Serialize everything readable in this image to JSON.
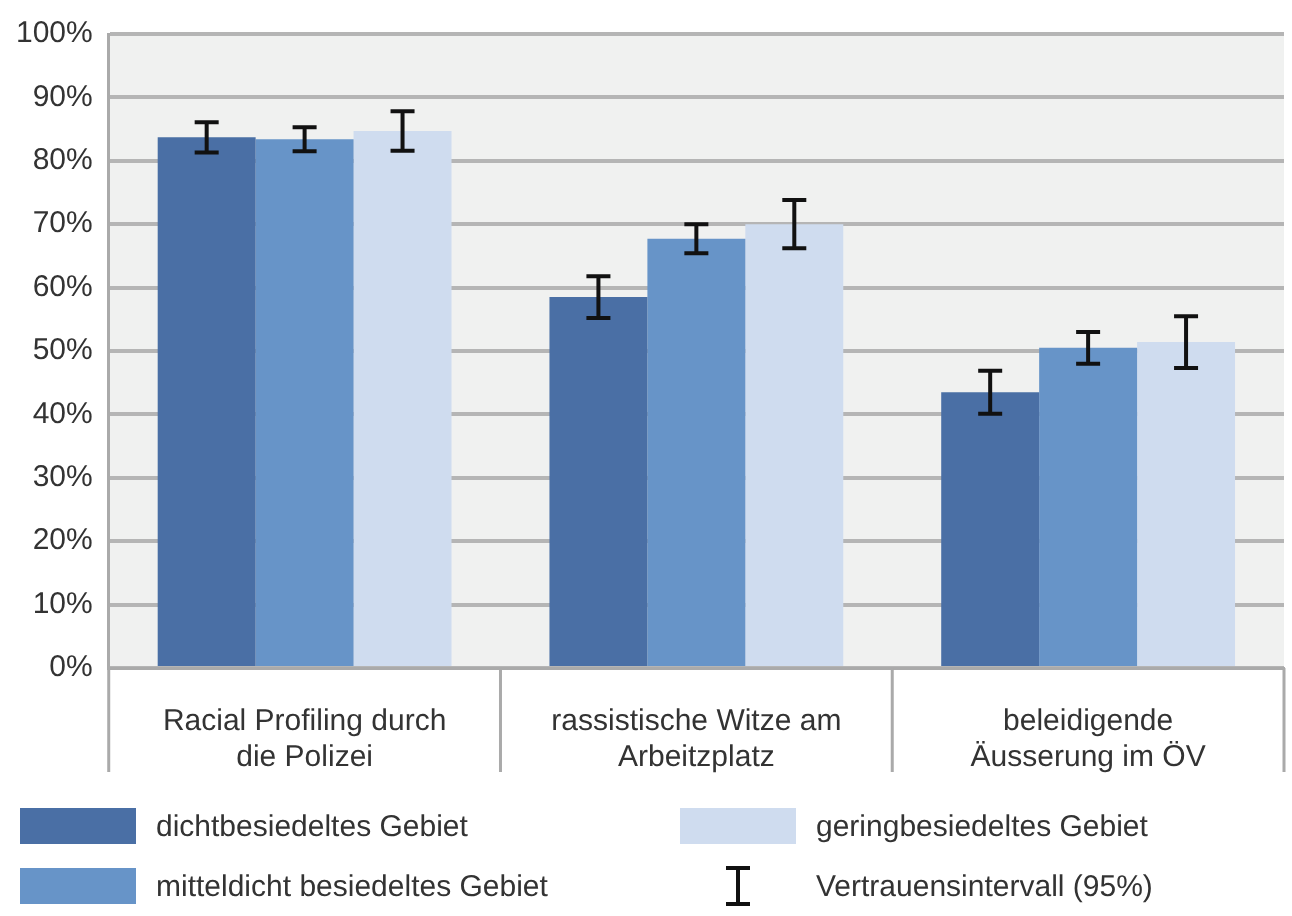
{
  "chart_data": {
    "type": "bar",
    "categories": [
      "Racial Profiling durch die Polizei",
      "rassistische Witze am Arbeitzplatz",
      "beleidigende Äusserung im ÖV"
    ],
    "series": [
      {
        "name": "dichtbesiedeltes Gebiet",
        "color": "#4a6fa5",
        "values": [
          83.7,
          58.5,
          43.5
        ],
        "errors": [
          2.4,
          3.3,
          3.4
        ]
      },
      {
        "name": "mitteldicht besiedeltes Gebiet",
        "color": "#6794c8",
        "values": [
          83.4,
          67.7,
          50.5
        ],
        "errors": [
          1.9,
          2.3,
          2.5
        ]
      },
      {
        "name": "geringbesiedeltes Gebiet",
        "color": "#cfdcef",
        "values": [
          84.7,
          70.0,
          51.4
        ],
        "errors": [
          3.1,
          3.8,
          4.1
        ]
      }
    ],
    "ylim": [
      0,
      100
    ],
    "yticks": [
      {
        "value": 0,
        "label": "0%"
      },
      {
        "value": 10,
        "label": "10%"
      },
      {
        "value": 20,
        "label": "20%"
      },
      {
        "value": 30,
        "label": "30%"
      },
      {
        "value": 40,
        "label": "40%"
      },
      {
        "value": 50,
        "label": "50%"
      },
      {
        "value": 60,
        "label": "60%"
      },
      {
        "value": 70,
        "label": "70%"
      },
      {
        "value": 80,
        "label": "80%"
      },
      {
        "value": 90,
        "label": "90%"
      },
      {
        "value": 100,
        "label": "100%"
      }
    ],
    "grid": "y",
    "legend": "bottom",
    "annotations": [
      "Vertrauensintervall (95%)"
    ]
  }
}
